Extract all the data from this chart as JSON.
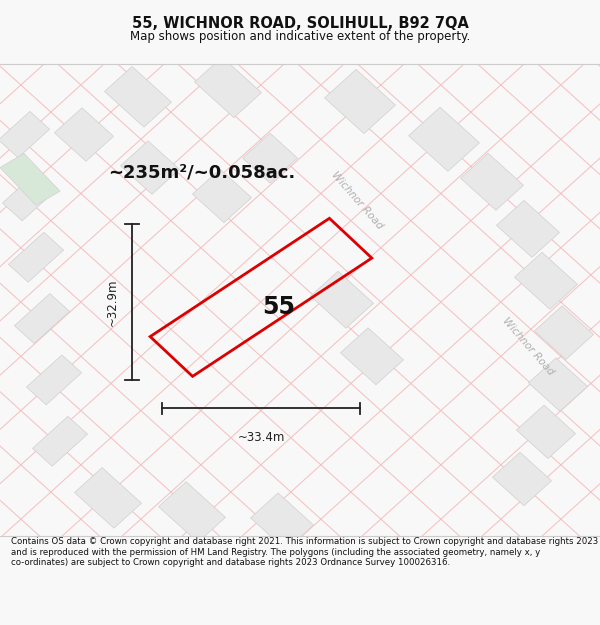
{
  "title": "55, WICHNOR ROAD, SOLIHULL, B92 7QA",
  "subtitle": "Map shows position and indicative extent of the property.",
  "footer": "Contains OS data © Crown copyright and database right 2021. This information is subject to Crown copyright and database rights 2023 and is reproduced with the permission of HM Land Registry. The polygons (including the associated geometry, namely x, y co-ordinates) are subject to Crown copyright and database rights 2023 Ordnance Survey 100026316.",
  "area_text": "~235m²/~0.058ac.",
  "dim_height": "~32.9m",
  "dim_width": "~33.4m",
  "property_label": "55",
  "road_label_1": "Wichnor Road",
  "road_label_2": "Wichnor Road",
  "map_bg": "#ffffff",
  "building_fc": "#e8e8e8",
  "building_ec": "#d0d0d0",
  "green_fc": "#d8e8d8",
  "road_line_color": "#f5b8b8",
  "prop_edge_color": "#dd0000",
  "dim_line_color": "#222222",
  "road_text_color": "#b0b0b0"
}
